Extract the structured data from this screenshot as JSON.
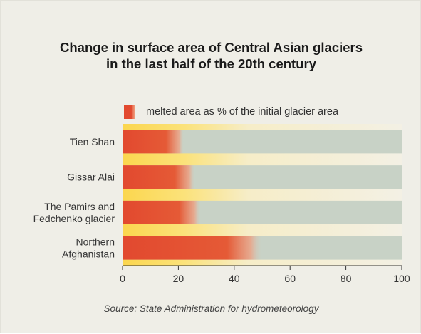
{
  "title_line1": "Change in surface area of Central Asian glaciers",
  "title_line2": "in the last half of the 20th century",
  "legend_label": "melted area as % of the initial glacier area",
  "source": "Source: State Administration for hydrometeorology",
  "colors": {
    "melted": "#e2492f",
    "remaining": "#c8d2c6",
    "band_yellow": "#fbd64e",
    "background": "#efeee7"
  },
  "chart_data": {
    "type": "bar",
    "orientation": "horizontal",
    "categories": [
      [
        "Tien Shan"
      ],
      [
        "Gissar Alai"
      ],
      [
        "The Pamirs and",
        "Fedchenko glacier"
      ],
      [
        "Northern",
        "Afghanistan"
      ]
    ],
    "series": [
      {
        "name": "melted area as % of the initial glacier area",
        "values": [
          20,
          24,
          26,
          48
        ]
      }
    ],
    "xlim": [
      0,
      100
    ],
    "xticks": [
      0,
      20,
      40,
      60,
      80,
      100
    ],
    "legend_position": "top",
    "grid": false
  }
}
